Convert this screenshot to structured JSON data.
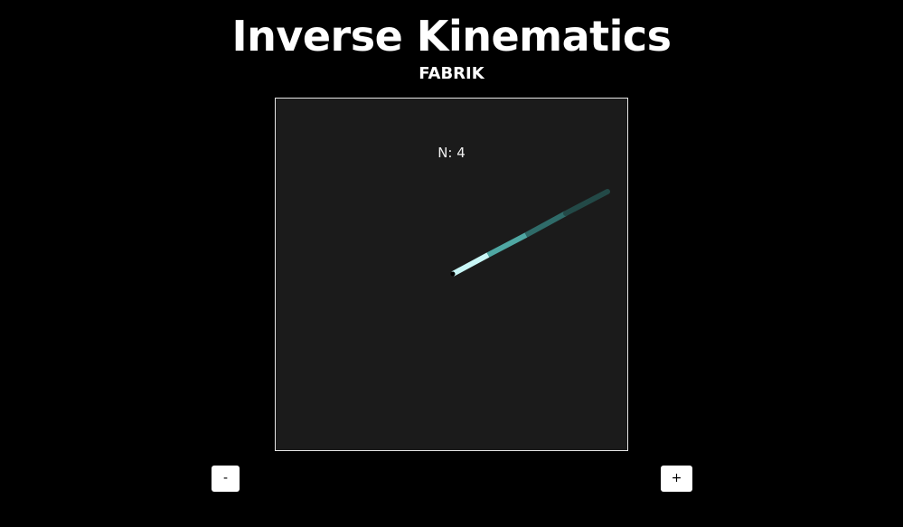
{
  "header": {
    "title": "Inverse Kinematics",
    "subtitle": "FABRIK"
  },
  "canvas": {
    "segment_count_label": "N: 4",
    "background_color": "#1b1b1b",
    "border_color": "#e6e6e6",
    "segment_colors": [
      "#c9f7f7",
      "#4fa7a3",
      "#2f6b69",
      "#234947"
    ]
  },
  "controls": {
    "decrease_label": "-",
    "increase_label": "+"
  }
}
